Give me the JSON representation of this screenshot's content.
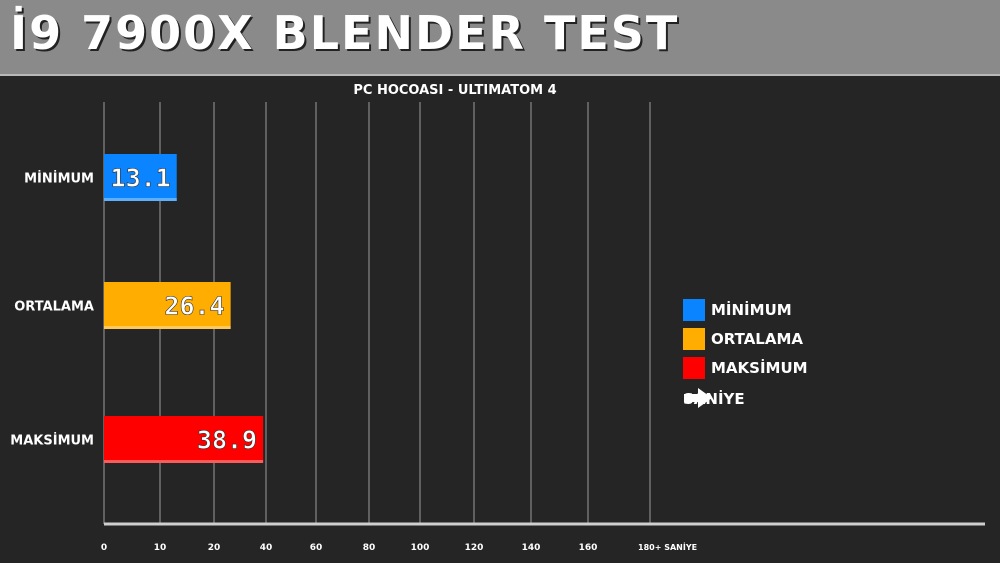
{
  "banner": {
    "title": "İ9 7900X BLENDER TEST"
  },
  "chart_data": {
    "type": "bar",
    "orientation": "horizontal",
    "title": "PC HOCOASI - ULTIMATOM 4",
    "categories": [
      "MİNİMUM",
      "ORTALAMA",
      "MAKSİMUM"
    ],
    "values": [
      13.1,
      26.4,
      38.9
    ],
    "value_labels": [
      "13.1",
      "26.4",
      "38.9"
    ],
    "colors": [
      "#0a84ff",
      "#ffad00",
      "#ff0000"
    ],
    "x_ticks": [
      0,
      10,
      20,
      40,
      60,
      80,
      100,
      120,
      140,
      160,
      180
    ],
    "x_tick_labels": [
      "0",
      "10",
      "20",
      "40",
      "60",
      "80",
      "100",
      "120",
      "140",
      "160",
      "180+ SANİYE"
    ],
    "grid": true,
    "legend_position": "right",
    "legend": [
      {
        "label": "MİNİMUM",
        "color": "#0a84ff"
      },
      {
        "label": "ORTALAMA",
        "color": "#ffad00"
      },
      {
        "label": "MAKSİMUM",
        "color": "#ff0000"
      }
    ],
    "unit_legend": {
      "icon": "arrow-right-icon",
      "label": "SANİYE"
    }
  }
}
